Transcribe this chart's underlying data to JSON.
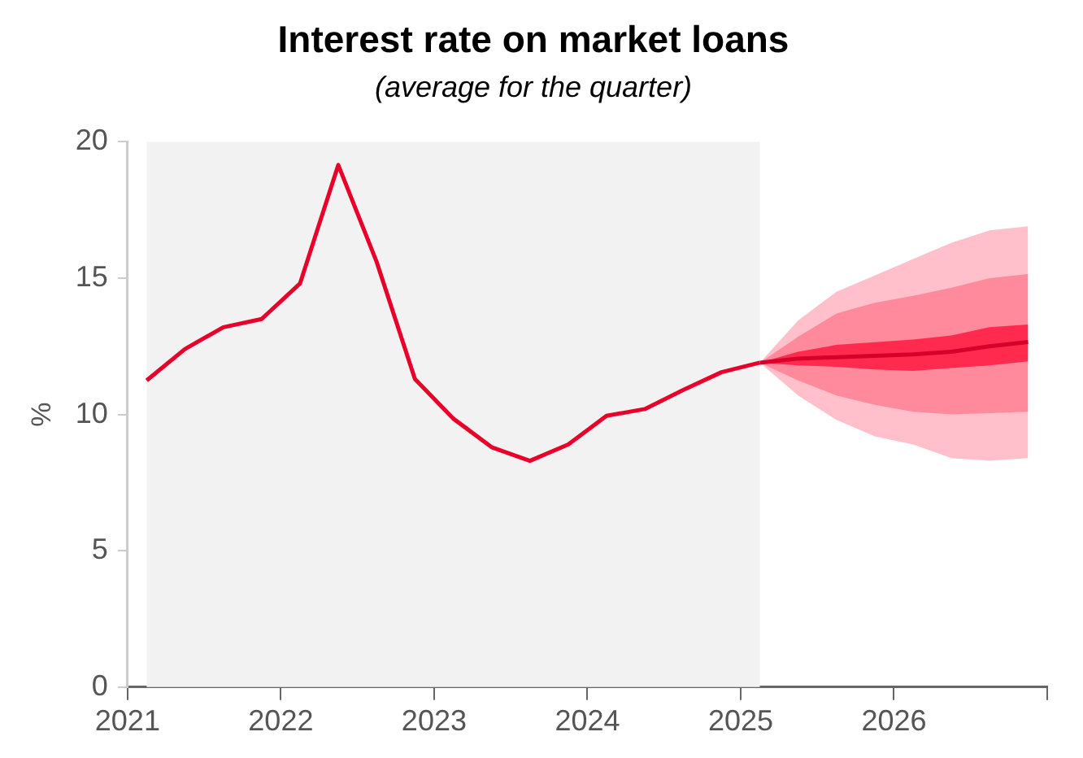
{
  "chart_data": {
    "type": "line",
    "title": "Interest rate on market loans",
    "subtitle": "(average for the quarter)",
    "ylabel": "%",
    "xlim": [
      2021,
      2027
    ],
    "xticks": [
      2021,
      2022,
      2023,
      2024,
      2025,
      2026,
      {
        "value": 2027,
        "label": null
      }
    ],
    "ylim": [
      0,
      20
    ],
    "yticks": [
      0,
      5,
      10,
      15,
      20
    ],
    "grid": false,
    "legend": false,
    "marker": "none",
    "line_style": "solid",
    "bands": [
      {
        "axis": "x",
        "from": 2021.125,
        "to": 2025.125,
        "color": "#f2f2f2"
      }
    ],
    "series": [
      {
        "type": "area",
        "color": "#ffc0cb",
        "x": [
          2025.125,
          2025.375,
          2025.625,
          2025.875,
          2026.125,
          2026.375,
          2026.625,
          2026.875
        ],
        "values": [
          null,
          null,
          null,
          null,
          null,
          null,
          null,
          null
        ],
        "lower": [
          11.9,
          10.7,
          9.8,
          9.2,
          8.9,
          8.4,
          8.3,
          8.4
        ],
        "upper": [
          11.9,
          13.45,
          14.5,
          15.1,
          15.7,
          16.3,
          16.75,
          16.9
        ]
      },
      {
        "type": "area",
        "color": "#ff8a9b",
        "x": [
          2025.125,
          2025.375,
          2025.625,
          2025.875,
          2026.125,
          2026.375,
          2026.625,
          2026.875
        ],
        "values": [
          null,
          null,
          null,
          null,
          null,
          null,
          null,
          null
        ],
        "lower": [
          11.9,
          11.25,
          10.7,
          10.35,
          10.1,
          10.0,
          10.05,
          10.1
        ],
        "upper": [
          11.9,
          12.85,
          13.7,
          14.1,
          14.35,
          14.65,
          15.0,
          15.15
        ]
      },
      {
        "type": "area",
        "color": "#ff2a4e",
        "x": [
          2025.125,
          2025.375,
          2025.625,
          2025.875,
          2026.125,
          2026.375,
          2026.625,
          2026.875
        ],
        "values": [
          null,
          null,
          null,
          null,
          null,
          null,
          null,
          null
        ],
        "lower": [
          11.9,
          11.8,
          11.75,
          11.65,
          11.6,
          11.7,
          11.8,
          11.95
        ],
        "upper": [
          11.9,
          12.3,
          12.55,
          12.65,
          12.75,
          12.9,
          13.2,
          13.3
        ]
      },
      {
        "type": "line",
        "color": "#e8002b",
        "x": [
          2021.125,
          2021.375,
          2021.625,
          2021.875,
          2022.125,
          2022.375,
          2022.625,
          2022.875,
          2023.125,
          2023.375,
          2023.625,
          2023.875,
          2024.125,
          2024.375,
          2024.625,
          2024.875,
          2025.125
        ],
        "values": [
          11.25,
          12.4,
          13.2,
          13.5,
          14.8,
          19.15,
          15.6,
          11.3,
          9.85,
          8.8,
          8.3,
          8.9,
          9.95,
          10.2,
          10.9,
          11.55,
          11.9
        ]
      },
      {
        "type": "line",
        "color": "#d6002a",
        "x": [
          2025.125,
          2025.375,
          2025.625,
          2025.875,
          2026.125,
          2026.375,
          2026.625,
          2026.875
        ],
        "values": [
          11.9,
          12.05,
          12.1,
          12.15,
          12.2,
          12.3,
          12.5,
          12.66
        ]
      }
    ]
  }
}
